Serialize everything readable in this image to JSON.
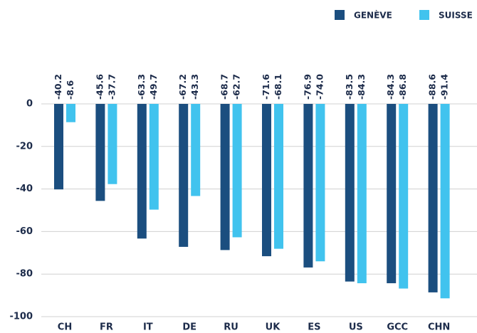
{
  "chart_data": {
    "type": "bar",
    "categories": [
      "CH",
      "FR",
      "IT",
      "DE",
      "RU",
      "UK",
      "ES",
      "US",
      "GCC",
      "CHN"
    ],
    "series": [
      {
        "name": "GENÈVE",
        "color": "#1b4e7f",
        "values": [
          -40.2,
          -45.6,
          -63.3,
          -67.2,
          -68.7,
          -71.6,
          -76.9,
          -83.5,
          -84.3,
          -88.6
        ],
        "value_labels": [
          "-40.2",
          "-45.6",
          "-63.3",
          "-67.2",
          "-68.7",
          "-71.6",
          "-76.9",
          "-83.5",
          "-84.3",
          "-88.6"
        ]
      },
      {
        "name": "SUISSE",
        "color": "#41c3ee",
        "values": [
          -8.6,
          -37.7,
          -49.7,
          -43.3,
          -62.7,
          -68.1,
          -74.0,
          -84.3,
          -86.8,
          -91.4
        ],
        "value_labels": [
          "-8.6",
          "-37.7",
          "-49.7",
          "-43.3",
          "-62.7",
          "-68.1",
          "-74.0",
          "-84.3",
          "-86.8",
          "-91.4"
        ]
      }
    ],
    "ylim": [
      -100,
      0
    ],
    "yticks": [
      0,
      -20,
      -40,
      -60,
      -80,
      -100
    ],
    "grid": true,
    "legend": "top-right"
  }
}
